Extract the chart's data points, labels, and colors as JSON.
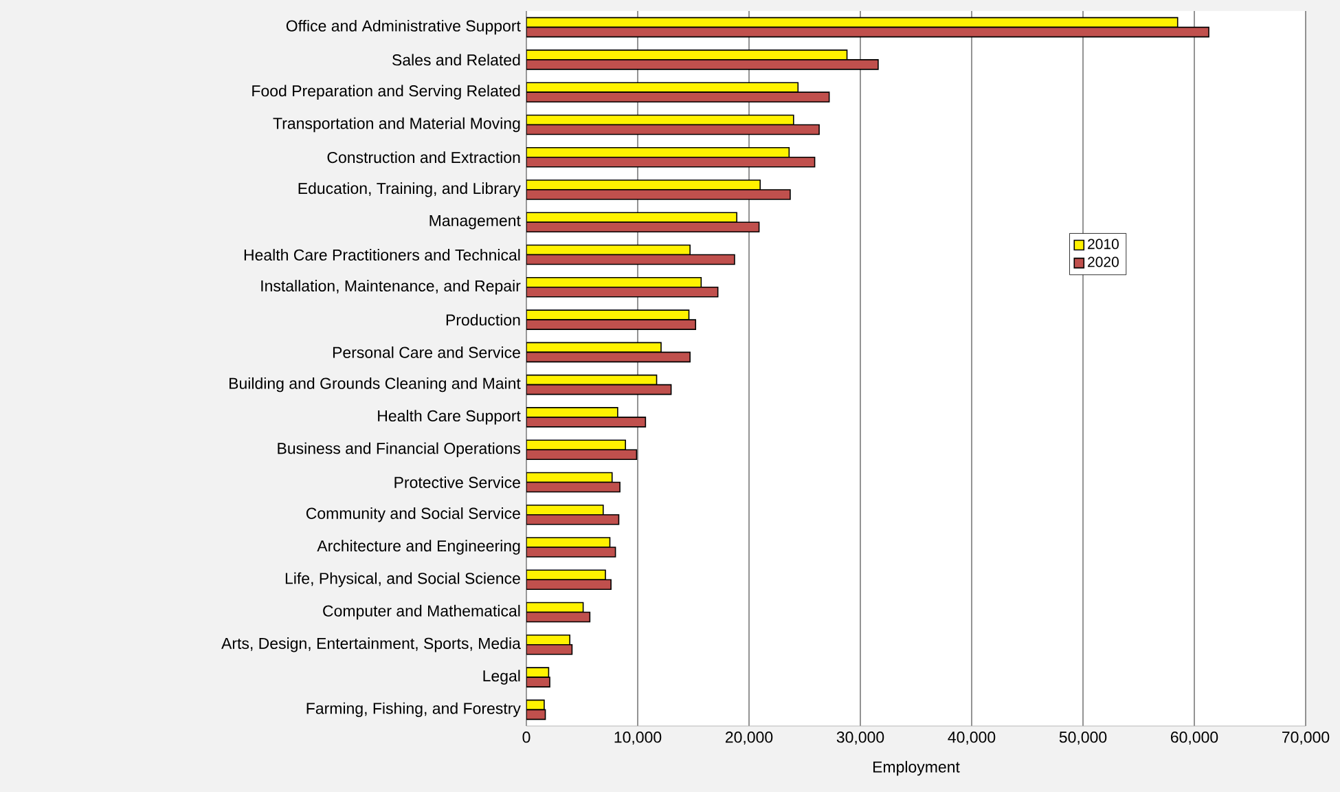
{
  "chart_data": {
    "type": "bar",
    "orientation": "horizontal",
    "xlabel": "Employment",
    "categories": [
      "Office and Administrative Support",
      "Sales and Related",
      "Food Preparation and Serving Related",
      "Transportation and Material Moving",
      "Construction and Extraction",
      "Education, Training, and Library",
      "Management",
      "Health Care Practitioners and Technical",
      "Installation, Maintenance, and Repair",
      "Production",
      "Personal Care and Service",
      "Building and Grounds Cleaning and Maint",
      "Health Care Support",
      "Business and Financial Operations",
      "Protective Service",
      "Community and Social Service",
      "Architecture and Engineering",
      "Life, Physical, and Social Science",
      "Computer and Mathematical",
      "Arts, Design, Entertainment, Sports, Media",
      "Legal",
      "Farming, Fishing, and Forestry"
    ],
    "series": [
      {
        "name": "2010",
        "color": "#fff200",
        "values": [
          58500,
          28800,
          24400,
          24000,
          23600,
          21000,
          18900,
          14700,
          15700,
          14600,
          12100,
          11700,
          8200,
          8900,
          7700,
          6900,
          7500,
          7100,
          5100,
          3900,
          2000,
          1600
        ]
      },
      {
        "name": "2020",
        "color": "#c0504d",
        "values": [
          61300,
          31600,
          27200,
          26300,
          25900,
          23700,
          20900,
          18700,
          17200,
          15200,
          14700,
          13000,
          10700,
          9900,
          8400,
          8300,
          8000,
          7600,
          5700,
          4100,
          2100,
          1700
        ]
      }
    ],
    "xlim": [
      0,
      70000
    ],
    "xticks": [
      0,
      {
        "value": 10000,
        "label": "10,000"
      },
      {
        "value": 20000,
        "label": "20,000"
      },
      {
        "value": 30000,
        "label": "30,000"
      },
      {
        "value": 40000,
        "label": "40,000"
      },
      {
        "value": 50000,
        "label": "50,000"
      },
      {
        "value": 60000,
        "label": "60,000"
      },
      {
        "value": 70000,
        "label": "70,000"
      }
    ],
    "grid": "x",
    "legend": "right"
  }
}
